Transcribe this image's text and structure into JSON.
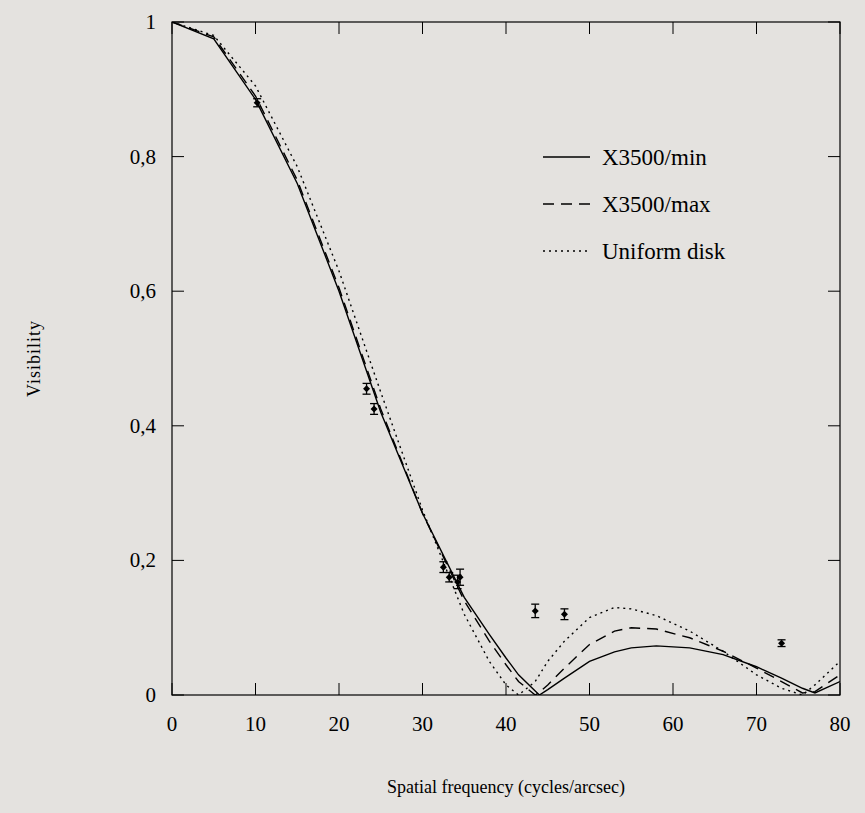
{
  "chart_data": {
    "type": "line",
    "xlabel": "Spatial frequency (cycles/arcsec)",
    "ylabel": "Visibility",
    "xlim": [
      0,
      80
    ],
    "ylim": [
      0,
      1
    ],
    "xticks": [
      0,
      10,
      20,
      30,
      40,
      50,
      60,
      70,
      80
    ],
    "yticks": [
      0,
      {
        "value": 0.2,
        "label": "0,2"
      },
      {
        "value": 0.4,
        "label": "0,4"
      },
      {
        "value": 0.6,
        "label": "0,6"
      },
      {
        "value": 0.8,
        "label": "0,8"
      },
      1
    ],
    "legend": "upper right",
    "grid": false,
    "x": [
      0,
      5,
      10,
      15,
      20,
      25,
      30,
      35,
      38,
      40,
      41.5,
      43.5,
      44,
      45,
      47,
      50,
      53,
      55,
      58,
      62,
      66,
      70,
      73,
      75.5,
      77,
      80
    ],
    "series": [
      {
        "name": "X3500/min",
        "color": "#000000",
        "line_style": "solid",
        "values": [
          1,
          0.975,
          0.885,
          0.76,
          0.6,
          0.42,
          0.27,
          0.145,
          0.09,
          0.055,
          0.03,
          0.006,
          0,
          0.008,
          0.025,
          0.05,
          0.064,
          0.07,
          0.073,
          0.07,
          0.06,
          0.042,
          0.025,
          0.01,
          0.003,
          0.02
        ]
      },
      {
        "name": "X3500/max",
        "color": "#000000",
        "line_style": "dashed",
        "values": [
          1,
          0.978,
          0.89,
          0.765,
          0.605,
          0.425,
          0.27,
          0.14,
          0.08,
          0.045,
          0.02,
          0,
          0.004,
          0.015,
          0.04,
          0.075,
          0.095,
          0.1,
          0.098,
          0.085,
          0.065,
          0.04,
          0.02,
          0.003,
          0.005,
          0.03
        ]
      },
      {
        "name": "Uniform disk",
        "color": "#000000",
        "line_style": "dotted",
        "values": [
          1,
          0.98,
          0.905,
          0.785,
          0.63,
          0.45,
          0.275,
          0.12,
          0.05,
          0.015,
          0,
          0.02,
          0.03,
          0.05,
          0.08,
          0.115,
          0.13,
          0.128,
          0.118,
          0.095,
          0.065,
          0.03,
          0.01,
          0,
          0.015,
          0.05
        ]
      }
    ],
    "measurements": {
      "marker": "diamond",
      "x": [
        10.2,
        23.3,
        24.2,
        32.5,
        33.2,
        34.2,
        34.5,
        43.5,
        47,
        73
      ],
      "values": [
        0.88,
        0.455,
        0.425,
        0.19,
        0.175,
        0.168,
        0.175,
        0.125,
        0.12,
        0.077
      ],
      "errors": [
        0.006,
        0.008,
        0.008,
        0.008,
        0.007,
        0.01,
        0.012,
        0.01,
        0.008,
        0.005
      ]
    }
  }
}
